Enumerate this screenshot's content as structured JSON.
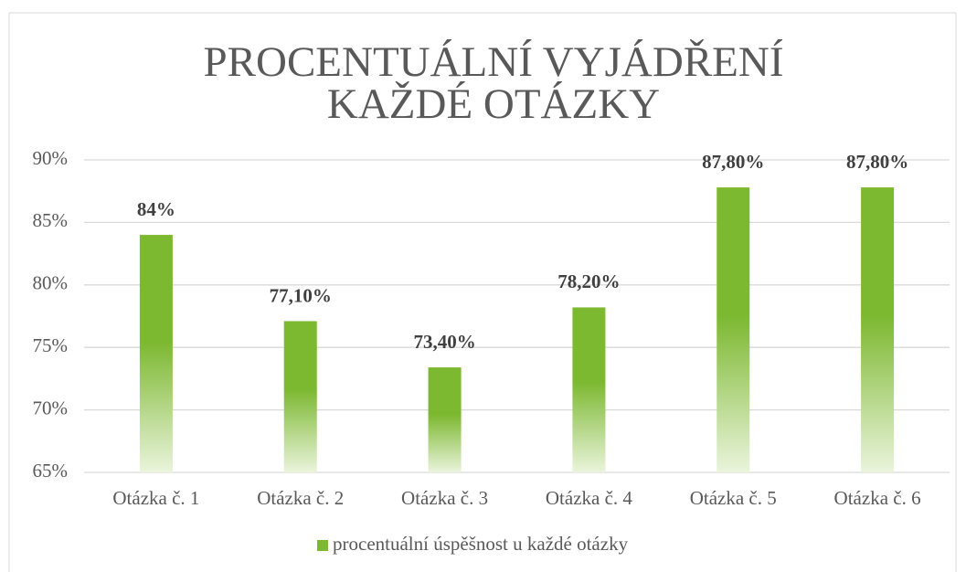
{
  "chart_data": {
    "type": "bar",
    "title": [
      "PROCENTUÁLNÍ VYJÁDŘENÍ",
      "KAŽDÉ OTÁZKY"
    ],
    "categories": [
      "Otázka č. 1",
      "Otázka č. 2",
      "Otázka č. 3",
      "Otázka č. 4",
      "Otázka č. 5",
      "Otázka č. 6"
    ],
    "series": [
      {
        "name": "procentuální úspěšnost u každé otázky",
        "color": "#7cb830",
        "values": [
          84,
          77.1,
          73.4,
          78.2,
          87.8,
          87.8
        ],
        "value_labels": [
          "84%",
          "77,10%",
          "73,40%",
          "78,20%",
          "87,80%",
          "87,80%"
        ]
      }
    ],
    "ylim": [
      65,
      90
    ],
    "yticks": [
      {
        "value": 65,
        "label": "65%"
      },
      {
        "value": 70,
        "label": "70%"
      },
      {
        "value": 75,
        "label": "75%"
      },
      {
        "value": 80,
        "label": "80%"
      },
      {
        "value": 85,
        "label": "85%"
      },
      {
        "value": 90,
        "label": "90%"
      }
    ],
    "grid": true,
    "legend": "bottom"
  }
}
